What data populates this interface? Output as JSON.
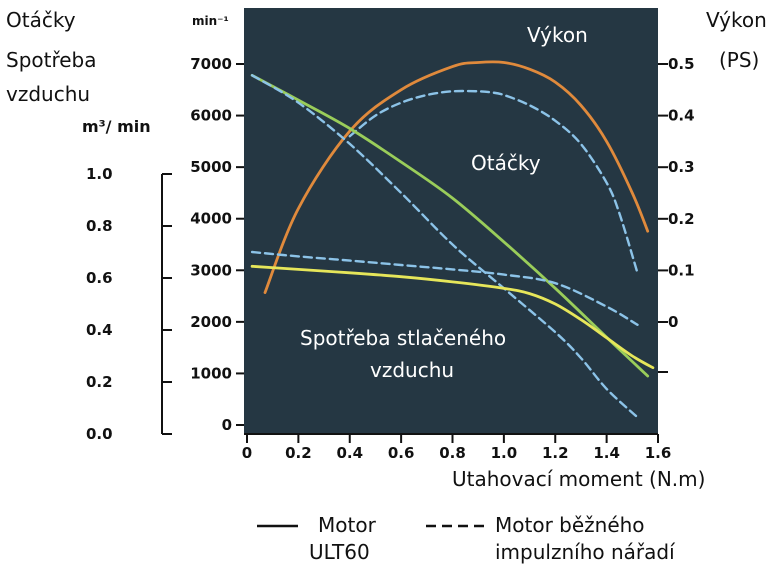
{
  "chart_data": {
    "type": "line",
    "xlabel": "Utahovací moment (N.m)",
    "x_ticks": [
      "0",
      "0.2",
      "0.4",
      "0.6",
      "0.8",
      "1.0",
      "1.2",
      "1.4",
      "1.6"
    ],
    "xlim": [
      0,
      1.6
    ],
    "left_outer_label_lines": [
      "Otáčky",
      "Spotřeba",
      "vzduchu"
    ],
    "air_axis": {
      "unit": "m³/ min",
      "ticks": [
        "0.0",
        "0.2",
        "0.4",
        "0.6",
        "0.8",
        "1.0"
      ],
      "range": [
        0,
        1.0
      ]
    },
    "rpm_axis": {
      "unit": "min⁻¹",
      "ticks": [
        "0",
        "1000",
        "2000",
        "3000",
        "4000",
        "5000",
        "6000",
        "7000"
      ],
      "range": [
        0,
        7000
      ]
    },
    "power_axis": {
      "label_lines": [
        "Výkon",
        "(PS)"
      ],
      "ticks": [
        "0",
        "0.1",
        "0.2",
        "0.3",
        "0.4",
        "0.5"
      ],
      "range_note": "0 at 2000 min⁻¹ level, 0.5 at 7000 min⁻¹ level"
    },
    "annotations": {
      "power": "Výkon",
      "rpm": "Otáčky",
      "air_line1": "Spotřeba stlačeného",
      "air_line2": "vzduchu"
    },
    "legend": {
      "solid_line1": "Motor",
      "solid_line2": "ULT60",
      "dashed_line1": "Motor běžného",
      "dashed_line2": "impulzního nářadí"
    },
    "colors": {
      "background": "#253743",
      "power": "#e08a3c",
      "rpm": "#9acd5a",
      "air": "#e6e65a",
      "dashed": "#8cc3e8"
    },
    "series": [
      {
        "name": "Výkon – Motor ULT60",
        "axis": "power",
        "style": "solid",
        "color_key": "power",
        "x": [
          0.07,
          0.2,
          0.4,
          0.6,
          0.8,
          0.9,
          1.0,
          1.1,
          1.2,
          1.3,
          1.4,
          1.5,
          1.56
        ],
        "y": [
          0.057,
          0.22,
          0.37,
          0.45,
          0.495,
          0.503,
          0.503,
          0.49,
          0.465,
          0.42,
          0.35,
          0.25,
          0.176
        ]
      },
      {
        "name": "Výkon – Motor běžného impulzního nářadí",
        "axis": "power",
        "style": "dashed",
        "color_key": "dashed",
        "x": [
          0.4,
          0.5,
          0.6,
          0.7,
          0.8,
          0.9,
          0.95,
          1.0,
          1.1,
          1.2,
          1.3,
          1.4,
          1.45,
          1.52
        ],
        "y": [
          0.36,
          0.4,
          0.425,
          0.44,
          0.447,
          0.447,
          0.445,
          0.44,
          0.42,
          0.39,
          0.345,
          0.27,
          0.21,
          0.095
        ]
      },
      {
        "name": "Otáčky – Motor ULT60",
        "axis": "rpm",
        "style": "solid",
        "color_key": "rpm",
        "x": [
          0.02,
          0.2,
          0.4,
          0.6,
          0.8,
          1.0,
          1.2,
          1.4,
          1.56
        ],
        "y": [
          6780,
          6300,
          5750,
          5100,
          4400,
          3550,
          2650,
          1700,
          950
        ]
      },
      {
        "name": "Otáčky – Motor běžného impulzního nářadí",
        "axis": "rpm",
        "style": "dashed",
        "color_key": "dashed",
        "x": [
          0.02,
          0.2,
          0.4,
          0.6,
          0.8,
          1.0,
          1.2,
          1.3,
          1.4,
          1.52
        ],
        "y": [
          6780,
          6250,
          5450,
          4500,
          3500,
          2650,
          1800,
          1300,
          700,
          150
        ]
      },
      {
        "name": "Spotřeba vzduchu – Motor ULT60",
        "axis": "air",
        "style": "solid",
        "color_key": "air",
        "x": [
          0.02,
          0.2,
          0.4,
          0.6,
          0.8,
          1.0,
          1.1,
          1.2,
          1.3,
          1.4,
          1.5,
          1.58
        ],
        "y": [
          0.645,
          0.633,
          0.62,
          0.605,
          0.585,
          0.56,
          0.54,
          0.5,
          0.44,
          0.37,
          0.3,
          0.255
        ]
      },
      {
        "name": "Spotřeba vzduchu – Motor běžného impulzního nářadí",
        "axis": "air",
        "style": "dashed",
        "color_key": "dashed",
        "x": [
          0.02,
          0.2,
          0.4,
          0.6,
          0.8,
          1.0,
          1.2,
          1.4,
          1.52
        ],
        "y": [
          0.7,
          0.683,
          0.667,
          0.65,
          0.633,
          0.613,
          0.58,
          0.49,
          0.42
        ]
      }
    ]
  }
}
